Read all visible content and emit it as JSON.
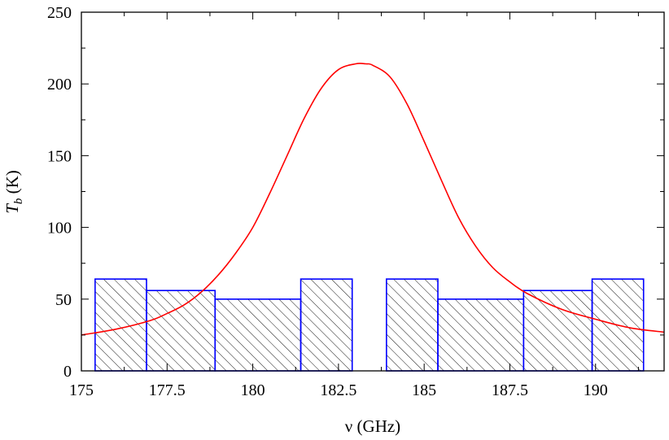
{
  "chart_data": {
    "type": "bar",
    "xlabel": "ν (GHz)",
    "ylabel": "T_b (K)",
    "ylabel_main": "T",
    "ylabel_sub": "b",
    "ylabel_unit": " (K)",
    "xlim": [
      175,
      192
    ],
    "ylim": [
      0,
      250
    ],
    "x_ticks": [
      175,
      177.5,
      180,
      182.5,
      185,
      187.5,
      190
    ],
    "x_tick_labels": [
      "175",
      "177.5",
      "180",
      "182.5",
      "185",
      "187.5",
      "190"
    ],
    "y_ticks": [
      0,
      50,
      100,
      150,
      200,
      250
    ],
    "y_tick_labels": [
      "0",
      "50",
      "100",
      "150",
      "200",
      "250"
    ],
    "grid": false,
    "bins": [
      {
        "x_start": 175.4,
        "x_end": 176.9,
        "value": 64
      },
      {
        "x_start": 176.9,
        "x_end": 178.9,
        "value": 56
      },
      {
        "x_start": 178.9,
        "x_end": 181.4,
        "value": 50
      },
      {
        "x_start": 181.4,
        "x_end": 182.9,
        "value": 64
      },
      {
        "x_start": 183.9,
        "x_end": 185.4,
        "value": 64
      },
      {
        "x_start": 185.4,
        "x_end": 187.9,
        "value": 50
      },
      {
        "x_start": 187.9,
        "x_end": 189.9,
        "value": 56
      },
      {
        "x_start": 189.9,
        "x_end": 191.4,
        "value": 64
      }
    ],
    "line": {
      "x": [
        175,
        176,
        177,
        177.5,
        178,
        178.5,
        179,
        179.5,
        180,
        180.5,
        181,
        181.5,
        182,
        182.5,
        183,
        183.3,
        183.5,
        184,
        184.5,
        185,
        185.5,
        186,
        186.5,
        187,
        187.5,
        188,
        189,
        190,
        191,
        192
      ],
      "y": [
        25,
        29,
        35,
        40,
        46,
        55,
        67,
        82,
        100,
        124,
        150,
        176,
        197,
        210,
        214,
        214,
        213,
        205,
        186,
        160,
        133,
        107,
        87,
        72,
        62,
        54,
        43,
        36,
        30,
        27
      ]
    },
    "colors": {
      "bar_edge": "#0000ff",
      "hatch": "#000000",
      "line": "#ff0000",
      "axis": "#000000"
    }
  }
}
